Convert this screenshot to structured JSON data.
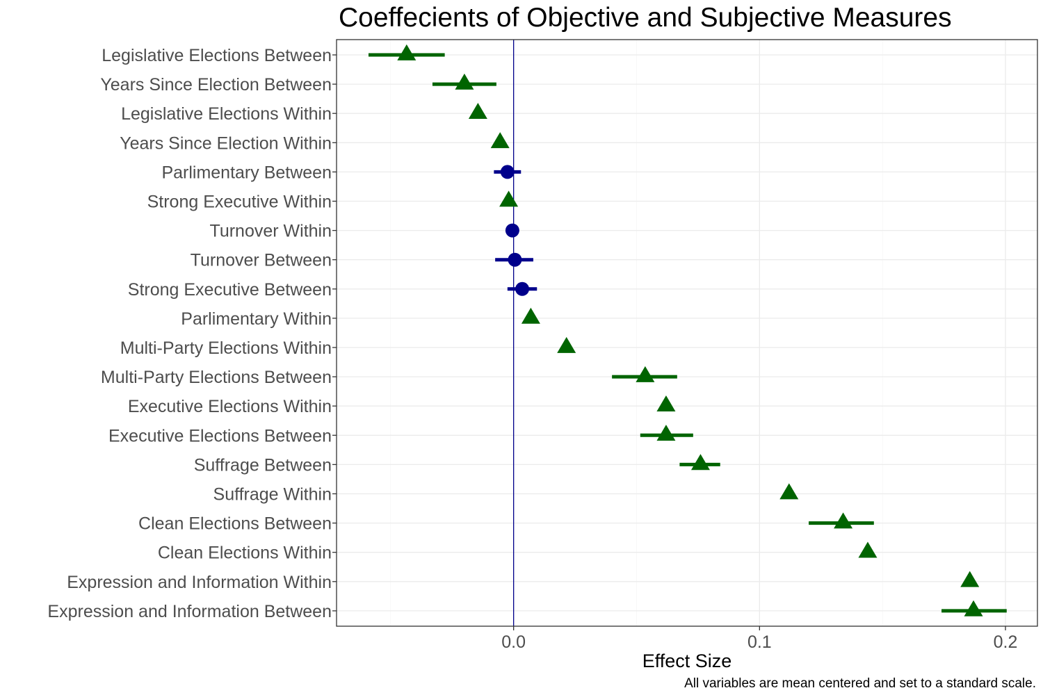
{
  "chart_data": {
    "type": "scatter",
    "title": "Coeffecients of Objective and Subjective Measures",
    "xlabel": "Effect Size",
    "ylabel": "",
    "caption": "All variables are mean centered and set to a standard scale.",
    "xlim": [
      -0.072,
      0.213
    ],
    "x_ticks": [
      0.0,
      0.1,
      0.2
    ],
    "x_tick_labels": [
      "0.0",
      "0.1",
      "0.2"
    ],
    "reference_line_x": 0,
    "grid": true,
    "legend": "none",
    "colors": {
      "triangle": "#006400",
      "circle": "#00008b",
      "reference_line": "#00008b"
    },
    "categories": [
      "Legislative Elections Between",
      "Years Since Election Between",
      "Legislative Elections Within",
      "Years Since Election Within",
      "Parlimentary Between",
      "Strong Executive Within",
      "Turnover Within",
      "Turnover Between",
      "Strong Executive Between",
      "Parlimentary Within",
      "Multi-Party Elections Within",
      "Multi-Party Elections Between",
      "Executive Elections Within",
      "Executive Elections Between",
      "Suffrage Between",
      "Suffrage Within",
      "Clean Elections Between",
      "Clean Elections Within",
      "Expression and Information Within",
      "Expression and Information Between"
    ],
    "points": [
      {
        "x": -0.0435,
        "lo": -0.059,
        "hi": -0.028,
        "shape": "triangle"
      },
      {
        "x": -0.02,
        "lo": -0.033,
        "hi": -0.007,
        "shape": "triangle"
      },
      {
        "x": -0.0145,
        "lo": -0.0145,
        "hi": -0.0145,
        "shape": "triangle"
      },
      {
        "x": -0.0055,
        "lo": -0.0055,
        "hi": -0.0055,
        "shape": "triangle"
      },
      {
        "x": -0.0025,
        "lo": -0.008,
        "hi": 0.003,
        "shape": "circle"
      },
      {
        "x": -0.002,
        "lo": -0.002,
        "hi": -0.002,
        "shape": "triangle"
      },
      {
        "x": -0.0005,
        "lo": -0.0005,
        "hi": -0.0005,
        "shape": "circle"
      },
      {
        "x": 0.0005,
        "lo": -0.0075,
        "hi": 0.008,
        "shape": "circle"
      },
      {
        "x": 0.0035,
        "lo": -0.0025,
        "hi": 0.0095,
        "shape": "circle"
      },
      {
        "x": 0.007,
        "lo": 0.007,
        "hi": 0.007,
        "shape": "triangle"
      },
      {
        "x": 0.0215,
        "lo": 0.0215,
        "hi": 0.0215,
        "shape": "triangle"
      },
      {
        "x": 0.0535,
        "lo": 0.04,
        "hi": 0.0665,
        "shape": "triangle"
      },
      {
        "x": 0.062,
        "lo": 0.062,
        "hi": 0.062,
        "shape": "triangle"
      },
      {
        "x": 0.062,
        "lo": 0.0515,
        "hi": 0.073,
        "shape": "triangle"
      },
      {
        "x": 0.076,
        "lo": 0.0675,
        "hi": 0.084,
        "shape": "triangle"
      },
      {
        "x": 0.112,
        "lo": 0.112,
        "hi": 0.112,
        "shape": "triangle"
      },
      {
        "x": 0.134,
        "lo": 0.12,
        "hi": 0.1465,
        "shape": "triangle"
      },
      {
        "x": 0.144,
        "lo": 0.144,
        "hi": 0.144,
        "shape": "triangle"
      },
      {
        "x": 0.1855,
        "lo": 0.1855,
        "hi": 0.1855,
        "shape": "triangle"
      },
      {
        "x": 0.187,
        "lo": 0.174,
        "hi": 0.2005,
        "shape": "triangle"
      }
    ]
  }
}
